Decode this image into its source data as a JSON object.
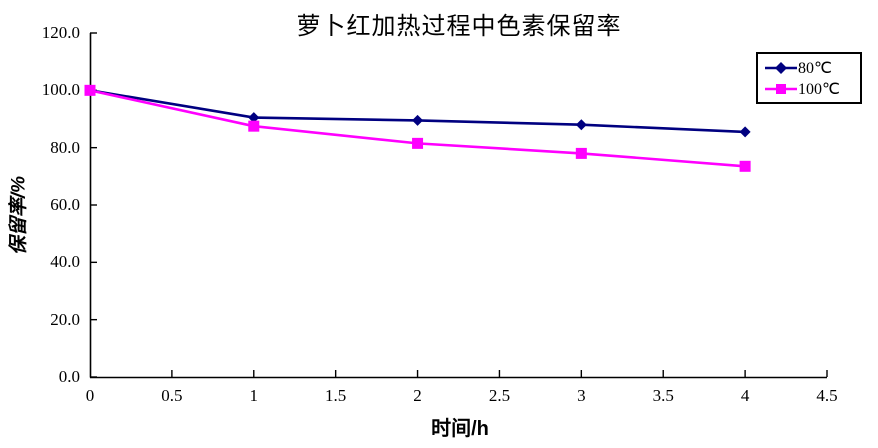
{
  "chart_data": {
    "type": "line",
    "title": "萝卜红加热过程中色素保留率",
    "xlabel": "时间/h",
    "ylabel": "保留率/%",
    "x": [
      0,
      1,
      2,
      3,
      4
    ],
    "series": [
      {
        "name": "80℃",
        "color": "#000080",
        "marker": "diamond",
        "values": [
          100,
          90.5,
          89.5,
          88.0,
          85.5
        ]
      },
      {
        "name": "100℃",
        "color": "#FF00FF",
        "marker": "square",
        "values": [
          100,
          87.5,
          81.5,
          78.0,
          73.5
        ]
      }
    ],
    "xlim": [
      0,
      4.5
    ],
    "ylim": [
      0,
      120
    ],
    "xticks": {
      "values": [
        0,
        0.5,
        1,
        1.5,
        2,
        2.5,
        3,
        3.5,
        4,
        4.5
      ],
      "labels": [
        "0",
        "0.5",
        "1",
        "1.5",
        "2",
        "2.5",
        "3",
        "3.5",
        "4",
        "4.5"
      ]
    },
    "yticks": {
      "values": [
        0,
        20,
        40,
        60,
        80,
        100,
        120
      ],
      "labels": [
        "0.0",
        "20.0",
        "40.0",
        "60.0",
        "80.0",
        "100.0",
        "120.0"
      ]
    },
    "grid": false,
    "legend_position": "top-right",
    "axis_color": "#000000",
    "background_color": "#ffffff"
  }
}
